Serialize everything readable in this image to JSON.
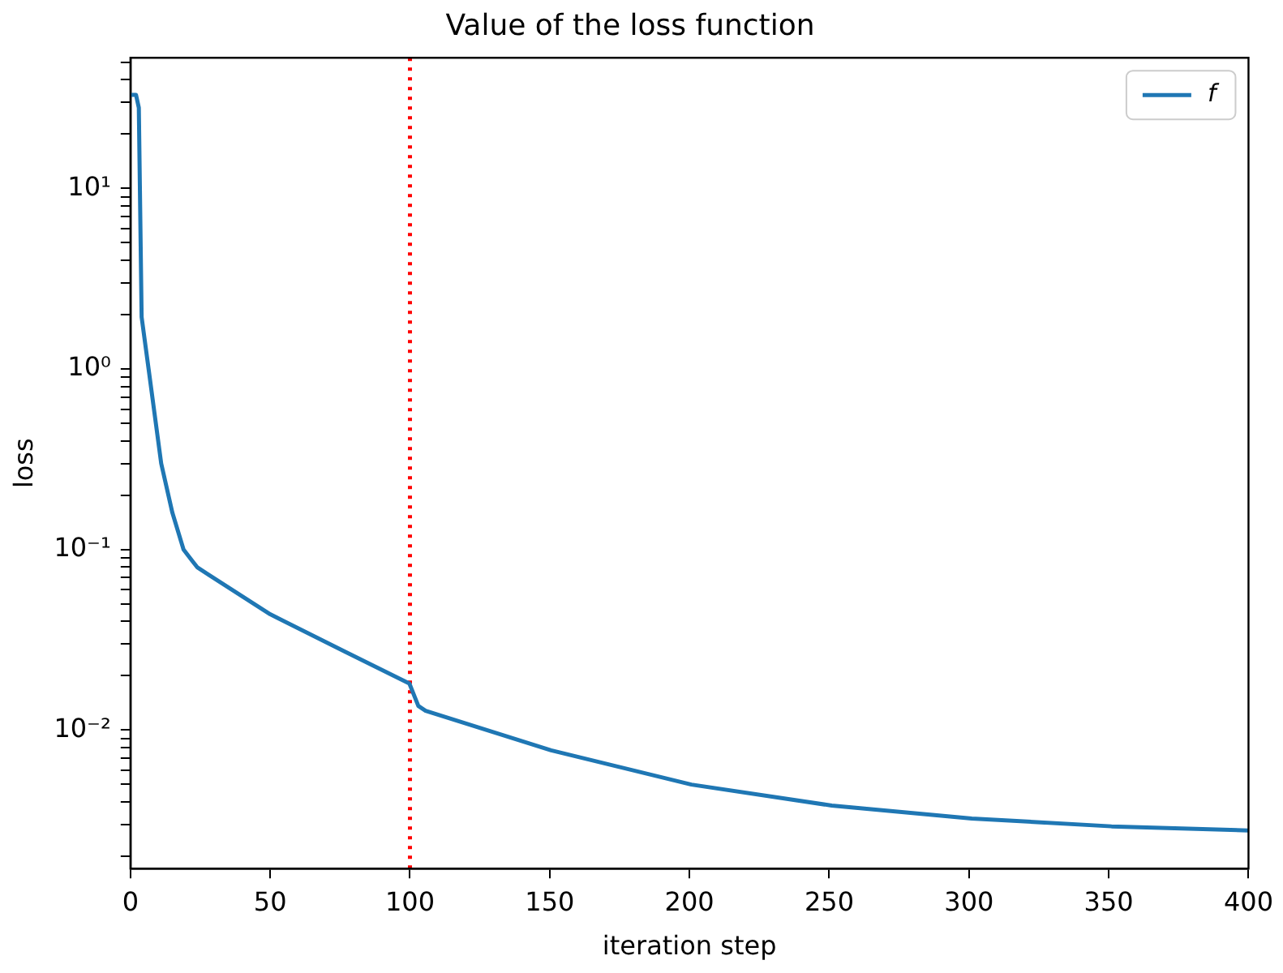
{
  "chart_data": {
    "type": "line",
    "title": "Value of the loss function",
    "xlabel": "iteration step",
    "ylabel": "loss",
    "x": [
      0,
      2,
      3,
      4,
      6.5,
      11,
      15,
      19,
      22,
      24,
      50,
      76.5,
      99.8,
      103,
      105.6,
      150.5,
      200.7,
      250.9,
      301,
      351,
      400
    ],
    "series": [
      {
        "name": "f",
        "color": "#1f77b4",
        "values": [
          33,
          33,
          28,
          1.94,
          1.0,
          0.3,
          0.16,
          0.1,
          0.087,
          0.0795,
          0.0438,
          0.0273,
          0.0181,
          0.0136,
          0.0128,
          0.00773,
          0.00499,
          0.00382,
          0.00324,
          0.00293,
          0.00278
        ]
      }
    ],
    "log": "y",
    "xlim": [
      0,
      400
    ],
    "xticks": [
      0,
      50,
      100,
      150,
      200,
      250,
      300,
      350,
      400
    ],
    "ylim": [
      0.00171,
      53
    ],
    "yticks": [
      {
        "value": 0.002,
        "label": null
      },
      {
        "value": 0.003,
        "label": null
      },
      {
        "value": 0.004,
        "label": null
      },
      {
        "value": 0.005,
        "label": null
      },
      {
        "value": 0.006,
        "label": null
      },
      {
        "value": 0.007,
        "label": null
      },
      {
        "value": 0.008,
        "label": null
      },
      {
        "value": 0.009,
        "label": null
      },
      {
        "value": 0.01,
        "label": "10⁻²"
      },
      {
        "value": 0.02,
        "label": null
      },
      {
        "value": 0.03,
        "label": null
      },
      {
        "value": 0.04,
        "label": null
      },
      {
        "value": 0.05,
        "label": null
      },
      {
        "value": 0.06,
        "label": null
      },
      {
        "value": 0.07,
        "label": null
      },
      {
        "value": 0.08,
        "label": null
      },
      {
        "value": 0.09,
        "label": null
      },
      {
        "value": 0.1,
        "label": "10⁻¹"
      },
      {
        "value": 0.2,
        "label": null
      },
      {
        "value": 0.3,
        "label": null
      },
      {
        "value": 0.4,
        "label": null
      },
      {
        "value": 0.5,
        "label": null
      },
      {
        "value": 0.6,
        "label": null
      },
      {
        "value": 0.7,
        "label": null
      },
      {
        "value": 0.8,
        "label": null
      },
      {
        "value": 0.9,
        "label": null
      },
      {
        "value": 1,
        "label": "10⁰"
      },
      {
        "value": 2,
        "label": null
      },
      {
        "value": 3,
        "label": null
      },
      {
        "value": 4,
        "label": null
      },
      {
        "value": 5,
        "label": null
      },
      {
        "value": 6,
        "label": null
      },
      {
        "value": 7,
        "label": null
      },
      {
        "value": 8,
        "label": null
      },
      {
        "value": 9,
        "label": null
      },
      {
        "value": 10,
        "label": "10¹"
      },
      {
        "value": 20,
        "label": null
      },
      {
        "value": 30,
        "label": null
      },
      {
        "value": 40,
        "label": null
      },
      {
        "value": 50,
        "label": null
      }
    ],
    "ref_lines": [
      {
        "axis": "x",
        "value": 100,
        "color": "#ff0000",
        "line_style": "dotted"
      }
    ],
    "grid": false,
    "legend": "top right",
    "marker": "none",
    "line_style": "solid"
  }
}
